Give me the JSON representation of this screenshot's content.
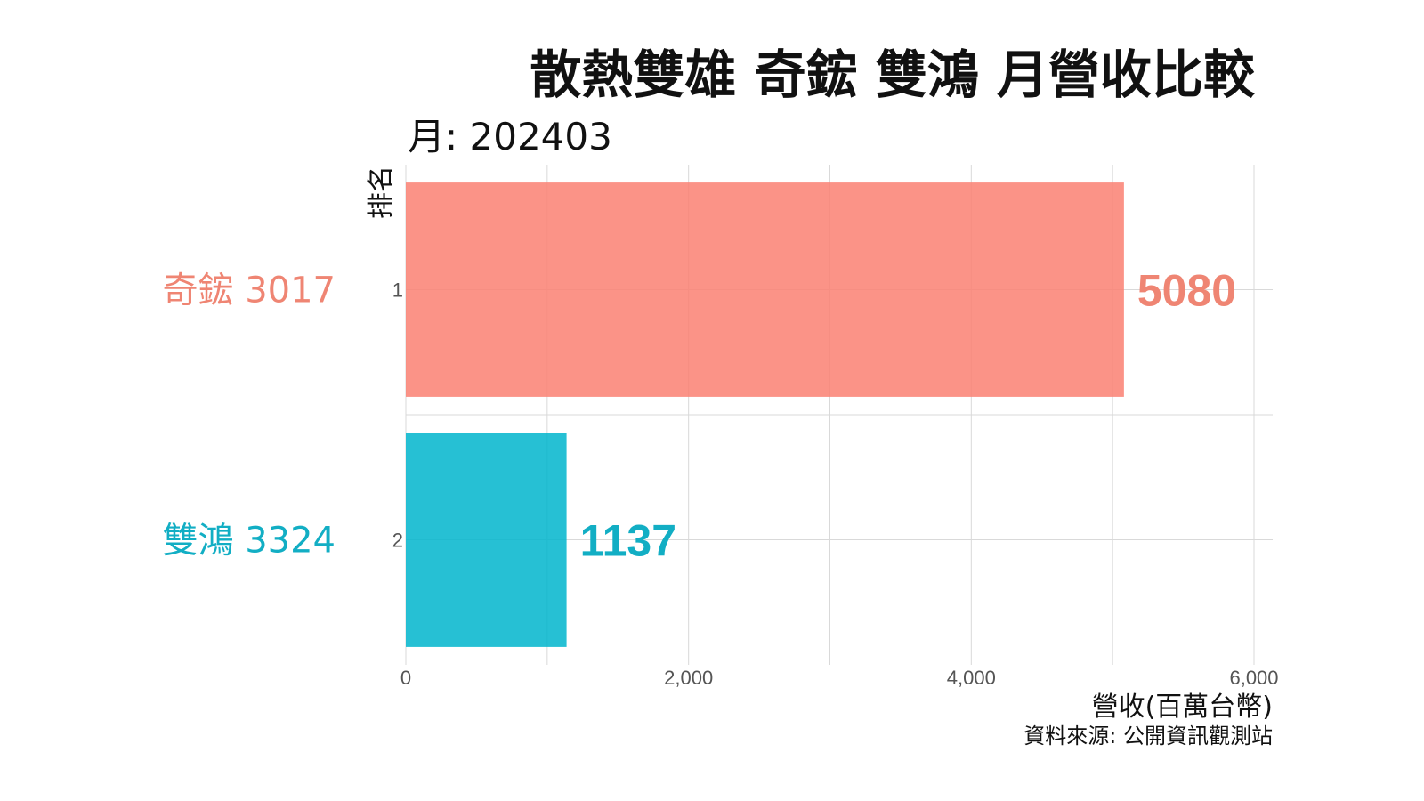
{
  "chart_data": {
    "type": "bar",
    "orientation": "horizontal",
    "title": "散熱雙雄 奇鋐 雙鴻 月營收比較",
    "subtitle": "月: 202403",
    "ylabel": "排名",
    "xlabel": "營收(百萬台幣)",
    "caption": "資料來源: 公開資訊觀測站",
    "xlim": [
      0,
      6000
    ],
    "xticks": [
      0,
      2000,
      4000,
      6000
    ],
    "xtick_labels": [
      "0",
      "2,000",
      "4,000",
      "6,000"
    ],
    "grid": true,
    "bars": [
      {
        "rank": "1",
        "label": "奇鋐 3017",
        "value": 5080,
        "value_label": "5080",
        "color": "#FA8072",
        "label_color": "#EF8573"
      },
      {
        "rank": "2",
        "label": "雙鴻 3324",
        "value": 1137,
        "value_label": "1137",
        "color": "#00B5CC",
        "label_color": "#12AEC4"
      }
    ]
  }
}
